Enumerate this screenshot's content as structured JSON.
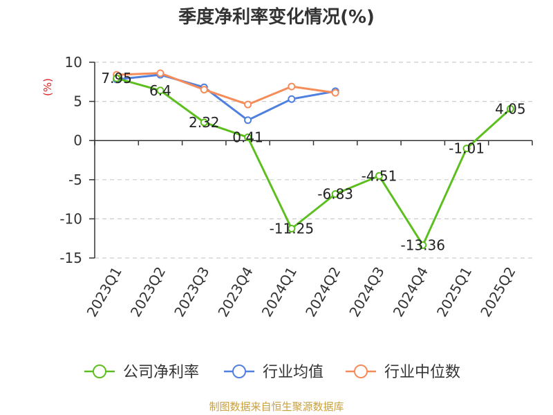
{
  "chart_data": {
    "type": "line",
    "title": "季度净利率变化情况(%)",
    "ylabel": "(%)",
    "xlabel": "",
    "categories": [
      "2023Q1",
      "2023Q2",
      "2023Q3",
      "2023Q4",
      "2024Q1",
      "2024Q2",
      "2024Q3",
      "2024Q4",
      "2025Q1",
      "2025Q2"
    ],
    "ylim": [
      -15,
      10
    ],
    "yticks": [
      10,
      5,
      0,
      -5,
      -10,
      -15
    ],
    "grid": true,
    "legend_position": "bottom",
    "series": [
      {
        "name": "公司净利率",
        "color": "#5cbf1f",
        "values": [
          7.95,
          6.4,
          2.32,
          0.41,
          -11.25,
          -6.83,
          -4.51,
          -13.36,
          -1.01,
          4.05
        ],
        "labels": [
          "7.95",
          "6.4",
          "2.32",
          "0.41",
          "-11.25",
          "-6.83",
          "-4.51",
          "-13.36",
          "-1.01",
          "4.05"
        ]
      },
      {
        "name": "行业均值",
        "color": "#4f7fdf",
        "values": [
          7.8,
          8.4,
          6.8,
          2.6,
          5.3,
          6.3,
          null,
          null,
          null,
          null
        ]
      },
      {
        "name": "行业中位数",
        "color": "#f58c5a",
        "values": [
          8.4,
          8.6,
          6.5,
          4.6,
          6.9,
          6.1,
          null,
          null,
          null,
          null
        ]
      }
    ]
  },
  "source_text": "制图数据来自恒生聚源数据库"
}
